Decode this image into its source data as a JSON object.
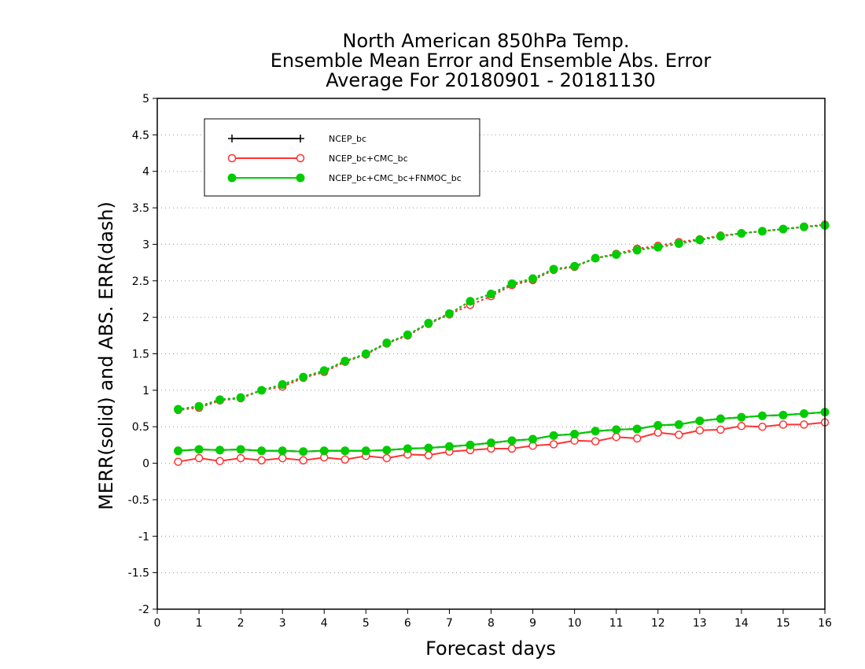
{
  "chart_data": {
    "type": "line",
    "title": [
      "North American 850hPa Temp.",
      "Ensemble Mean Error and Ensemble Abs. Error",
      "Average For 20180901 - 20181130"
    ],
    "xlabel": "Forecast days",
    "ylabel": "MERR(solid) and ABS. ERR(dash)",
    "xlim": [
      0,
      16
    ],
    "ylim": [
      -2,
      5
    ],
    "xticks": [
      0,
      1,
      2,
      3,
      4,
      5,
      6,
      7,
      8,
      9,
      10,
      11,
      12,
      13,
      14,
      15,
      16
    ],
    "yticks": [
      -2,
      -1.5,
      -1,
      -0.5,
      0,
      0.5,
      1,
      1.5,
      2,
      2.5,
      3,
      3.5,
      4,
      4.5,
      5
    ],
    "ytick_labels": [
      "-2",
      "-1.5",
      "-1",
      "-0.5",
      "0",
      "0.5",
      "1",
      "1.5",
      "2",
      "2.5",
      "3",
      "3.5",
      "4",
      "4.5",
      "5"
    ],
    "grid": "horizontal dotted",
    "legend_position": "top-left",
    "x": [
      0.5,
      1,
      1.5,
      2,
      2.5,
      3,
      3.5,
      4,
      4.5,
      5,
      5.5,
      6,
      6.5,
      7,
      7.5,
      8,
      8.5,
      9,
      9.5,
      10,
      10.5,
      11,
      11.5,
      12,
      12.5,
      13,
      13.5,
      14,
      14.5,
      15,
      15.5,
      16
    ],
    "series": [
      {
        "name": "NCEP_bc",
        "color": "#000000",
        "marker": "plus",
        "merr": [
          0.17,
          0.19,
          0.18,
          0.19,
          0.17,
          0.17,
          0.16,
          0.17,
          0.17,
          0.17,
          0.18,
          0.2,
          0.21,
          0.23,
          0.25,
          0.28,
          0.31,
          0.33,
          0.38,
          0.4,
          0.44,
          0.46,
          0.47,
          0.52,
          0.53,
          0.58,
          0.61,
          0.63,
          0.65,
          0.66,
          0.68,
          0.7
        ],
        "abs_err": [
          0.74,
          0.78,
          0.87,
          0.9,
          1.0,
          1.08,
          1.18,
          1.27,
          1.4,
          1.5,
          1.65,
          1.76,
          1.92,
          2.05,
          2.22,
          2.32,
          2.46,
          2.53,
          2.66,
          2.7,
          2.81,
          2.86,
          2.92,
          2.96,
          3.01,
          3.06,
          3.11,
          3.15,
          3.18,
          3.21,
          3.24,
          3.26
        ]
      },
      {
        "name": "NCEP_bc+CMC_bc",
        "color": "#ff3333",
        "marker": "open-circle",
        "merr": [
          0.02,
          0.07,
          0.03,
          0.07,
          0.04,
          0.07,
          0.04,
          0.08,
          0.05,
          0.1,
          0.07,
          0.12,
          0.11,
          0.16,
          0.18,
          0.2,
          0.2,
          0.24,
          0.26,
          0.31,
          0.3,
          0.36,
          0.34,
          0.42,
          0.39,
          0.45,
          0.46,
          0.51,
          0.5,
          0.53,
          0.53,
          0.56
        ],
        "abs_err": [
          0.73,
          0.76,
          0.86,
          0.89,
          1.0,
          1.05,
          1.17,
          1.25,
          1.39,
          1.49,
          1.64,
          1.75,
          1.91,
          2.04,
          2.17,
          2.29,
          2.44,
          2.51,
          2.65,
          2.69,
          2.81,
          2.87,
          2.94,
          2.98,
          3.03,
          3.07,
          3.12,
          3.15,
          3.18,
          3.21,
          3.24,
          3.27
        ]
      },
      {
        "name": "NCEP_bc+CMC_bc+FNMOC_bc",
        "color": "#00cc00",
        "marker": "filled-circle",
        "merr": [
          0.17,
          0.19,
          0.18,
          0.19,
          0.17,
          0.17,
          0.16,
          0.17,
          0.17,
          0.17,
          0.18,
          0.2,
          0.21,
          0.23,
          0.25,
          0.28,
          0.31,
          0.33,
          0.38,
          0.4,
          0.44,
          0.46,
          0.47,
          0.52,
          0.53,
          0.58,
          0.61,
          0.63,
          0.65,
          0.66,
          0.68,
          0.7
        ],
        "abs_err": [
          0.74,
          0.78,
          0.87,
          0.9,
          1.0,
          1.08,
          1.18,
          1.27,
          1.4,
          1.5,
          1.65,
          1.76,
          1.92,
          2.05,
          2.22,
          2.32,
          2.46,
          2.53,
          2.66,
          2.7,
          2.81,
          2.86,
          2.92,
          2.96,
          3.01,
          3.06,
          3.11,
          3.15,
          3.18,
          3.21,
          3.24,
          3.26
        ]
      }
    ]
  }
}
